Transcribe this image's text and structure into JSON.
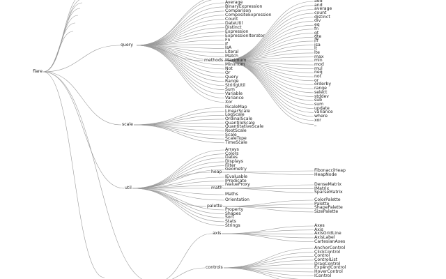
{
  "tree": {
    "root": "flare",
    "query": {
      "label": "query",
      "methods_label": "methods",
      "children": [
        "Average",
        "BinaryExpression",
        "Comparison",
        "CompositeExpression",
        "Count",
        "DateUtil",
        "Distinct",
        "Expression",
        "ExpressionIterator",
        "Fn",
        "If",
        "IsA",
        "Literal",
        "Match",
        "Maximum",
        "Minimum",
        "Not",
        "Or",
        "Query",
        "Range",
        "StringUtil",
        "Sum",
        "Variable",
        "Variance",
        "Xor"
      ],
      "methods": [
        "add",
        "and",
        "average",
        "count",
        "distinct",
        "div",
        "eq",
        "fn",
        "gt",
        "gte",
        "iff",
        "isa",
        "lt",
        "lte",
        "max",
        "min",
        "mod",
        "mul",
        "neq",
        "not",
        "or",
        "orderby",
        "range",
        "select",
        "stddev",
        "sub",
        "sum",
        "update",
        "variance",
        "where",
        "xor",
        "_"
      ]
    },
    "scale": {
      "label": "scale",
      "children": [
        "IScaleMap",
        "LinearScale",
        "LogScale",
        "OrdinalScale",
        "QuantileScale",
        "QuantitativeScale",
        "RootScale",
        "Scale",
        "ScaleType",
        "TimeScale"
      ]
    },
    "util": {
      "label": "util",
      "heap_label": "heap",
      "math_label": "math",
      "palette_label": "palette",
      "top_children": [
        "Arrays",
        "Colors",
        "Dates",
        "Displays",
        "Filter",
        "Geometry"
      ],
      "mid_children": [
        "IEvaluable",
        "IPredicate",
        "IValueProxy"
      ],
      "after_math": [
        "Maths",
        "Orientation"
      ],
      "tail_children": [
        "Property",
        "Shapes",
        "Sort",
        "Stats",
        "Strings"
      ],
      "heap": [
        "FibonacciHeap",
        "HeapNode"
      ],
      "math": [
        "DenseMatrix",
        "IMatrix",
        "SparseMatrix"
      ],
      "palette": [
        "ColorPalette",
        "Palette",
        "ShapePalette",
        "SizePalette"
      ]
    },
    "vis": {
      "axis_label": "axis",
      "controls_label": "controls",
      "axis": [
        "Axes",
        "Axis",
        "AxisGridLine",
        "AxisLabel",
        "CartesianAxes"
      ],
      "controls": [
        "AnchorControl",
        "ClickControl",
        "Control",
        "ControlList",
        "DragControl",
        "ExpandControl",
        "HoverControl",
        "IControl"
      ]
    }
  }
}
